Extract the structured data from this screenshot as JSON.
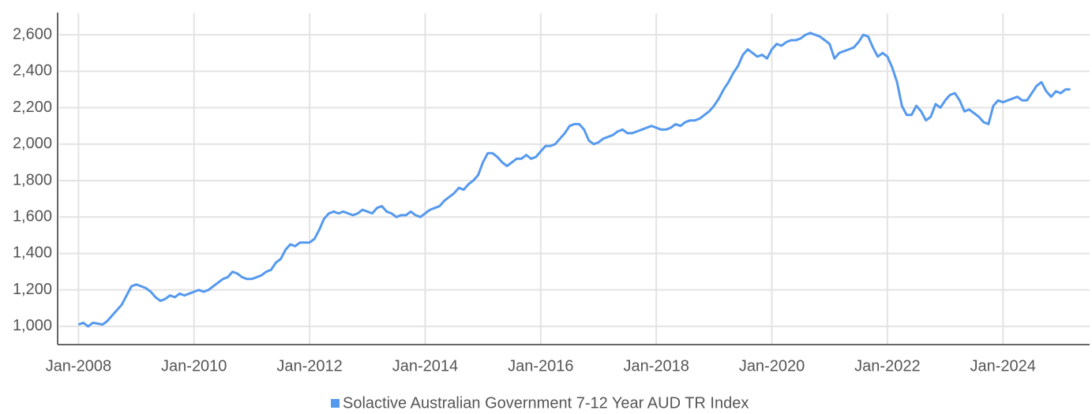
{
  "chart_data": {
    "type": "line",
    "x": [
      "2008-01",
      "2008-02",
      "2008-03",
      "2008-04",
      "2008-05",
      "2008-06",
      "2008-07",
      "2008-08",
      "2008-09",
      "2008-10",
      "2008-11",
      "2008-12",
      "2009-01",
      "2009-02",
      "2009-03",
      "2009-04",
      "2009-05",
      "2009-06",
      "2009-07",
      "2009-08",
      "2009-09",
      "2009-10",
      "2009-11",
      "2009-12",
      "2010-01",
      "2010-02",
      "2010-03",
      "2010-04",
      "2010-05",
      "2010-06",
      "2010-07",
      "2010-08",
      "2010-09",
      "2010-10",
      "2010-11",
      "2010-12",
      "2011-01",
      "2011-02",
      "2011-03",
      "2011-04",
      "2011-05",
      "2011-06",
      "2011-07",
      "2011-08",
      "2011-09",
      "2011-10",
      "2011-11",
      "2011-12",
      "2012-01",
      "2012-02",
      "2012-03",
      "2012-04",
      "2012-05",
      "2012-06",
      "2012-07",
      "2012-08",
      "2012-09",
      "2012-10",
      "2012-11",
      "2012-12",
      "2013-01",
      "2013-02",
      "2013-03",
      "2013-04",
      "2013-05",
      "2013-06",
      "2013-07",
      "2013-08",
      "2013-09",
      "2013-10",
      "2013-11",
      "2013-12",
      "2014-01",
      "2014-02",
      "2014-03",
      "2014-04",
      "2014-05",
      "2014-06",
      "2014-07",
      "2014-08",
      "2014-09",
      "2014-10",
      "2014-11",
      "2014-12",
      "2015-01",
      "2015-02",
      "2015-03",
      "2015-04",
      "2015-05",
      "2015-06",
      "2015-07",
      "2015-08",
      "2015-09",
      "2015-10",
      "2015-11",
      "2015-12",
      "2016-01",
      "2016-02",
      "2016-03",
      "2016-04",
      "2016-05",
      "2016-06",
      "2016-07",
      "2016-08",
      "2016-09",
      "2016-10",
      "2016-11",
      "2016-12",
      "2017-01",
      "2017-02",
      "2017-03",
      "2017-04",
      "2017-05",
      "2017-06",
      "2017-07",
      "2017-08",
      "2017-09",
      "2017-10",
      "2017-11",
      "2017-12",
      "2018-01",
      "2018-02",
      "2018-03",
      "2018-04",
      "2018-05",
      "2018-06",
      "2018-07",
      "2018-08",
      "2018-09",
      "2018-10",
      "2018-11",
      "2018-12",
      "2019-01",
      "2019-02",
      "2019-03",
      "2019-04",
      "2019-05",
      "2019-06",
      "2019-07",
      "2019-08",
      "2019-09",
      "2019-10",
      "2019-11",
      "2019-12",
      "2020-01",
      "2020-02",
      "2020-03",
      "2020-04",
      "2020-05",
      "2020-06",
      "2020-07",
      "2020-08",
      "2020-09",
      "2020-10",
      "2020-11",
      "2020-12",
      "2021-01",
      "2021-02",
      "2021-03",
      "2021-04",
      "2021-05",
      "2021-06",
      "2021-07",
      "2021-08",
      "2021-09",
      "2021-10",
      "2021-11",
      "2021-12",
      "2022-01",
      "2022-02",
      "2022-03",
      "2022-04",
      "2022-05",
      "2022-06",
      "2022-07",
      "2022-08",
      "2022-09",
      "2022-10",
      "2022-11",
      "2022-12",
      "2023-01",
      "2023-02",
      "2023-03",
      "2023-04",
      "2023-05",
      "2023-06",
      "2023-07",
      "2023-08",
      "2023-09",
      "2023-10",
      "2023-11",
      "2023-12",
      "2024-01",
      "2024-02",
      "2024-03",
      "2024-04",
      "2024-05",
      "2024-06",
      "2024-07",
      "2024-08",
      "2024-09",
      "2024-10",
      "2024-11",
      "2024-12",
      "2025-01",
      "2025-02",
      "2025-03"
    ],
    "series": [
      {
        "name": "Solactive Australian Government 7-12 Year AUD TR Index",
        "color": "#5599ee",
        "values": [
          1010,
          1020,
          1000,
          1020,
          1015,
          1010,
          1030,
          1060,
          1090,
          1120,
          1170,
          1220,
          1230,
          1220,
          1210,
          1190,
          1160,
          1140,
          1150,
          1170,
          1160,
          1180,
          1170,
          1180,
          1190,
          1200,
          1190,
          1200,
          1220,
          1240,
          1260,
          1270,
          1300,
          1290,
          1270,
          1260,
          1260,
          1270,
          1280,
          1300,
          1310,
          1350,
          1370,
          1420,
          1450,
          1440,
          1460,
          1460,
          1460,
          1480,
          1530,
          1590,
          1620,
          1630,
          1620,
          1630,
          1620,
          1610,
          1620,
          1640,
          1630,
          1620,
          1650,
          1660,
          1630,
          1620,
          1600,
          1610,
          1610,
          1630,
          1610,
          1600,
          1620,
          1640,
          1650,
          1660,
          1690,
          1710,
          1730,
          1760,
          1750,
          1780,
          1800,
          1830,
          1900,
          1950,
          1950,
          1930,
          1900,
          1880,
          1900,
          1920,
          1920,
          1940,
          1920,
          1930,
          1960,
          1990,
          1990,
          2000,
          2030,
          2060,
          2100,
          2110,
          2110,
          2080,
          2020,
          2000,
          2010,
          2030,
          2040,
          2050,
          2070,
          2080,
          2060,
          2060,
          2070,
          2080,
          2090,
          2100,
          2090,
          2080,
          2080,
          2090,
          2110,
          2100,
          2120,
          2130,
          2130,
          2140,
          2160,
          2180,
          2210,
          2250,
          2300,
          2340,
          2390,
          2430,
          2490,
          2520,
          2500,
          2480,
          2490,
          2470,
          2520,
          2550,
          2540,
          2560,
          2570,
          2570,
          2580,
          2600,
          2610,
          2600,
          2590,
          2570,
          2550,
          2470,
          2500,
          2510,
          2520,
          2530,
          2560,
          2600,
          2590,
          2530,
          2480,
          2500,
          2480,
          2420,
          2340,
          2210,
          2160,
          2160,
          2210,
          2180,
          2130,
          2150,
          2220,
          2200,
          2240,
          2270,
          2280,
          2240,
          2180,
          2190,
          2170,
          2150,
          2120,
          2110,
          2210,
          2240,
          2230,
          2240,
          2250,
          2260,
          2240,
          2240,
          2280,
          2320,
          2340,
          2290,
          2260,
          2290,
          2280,
          2300,
          2300
        ]
      }
    ],
    "xlim": [
      "2007-09",
      "2025-07"
    ],
    "xticks": [
      {
        "value": "2008-01",
        "label": "Jan-2008"
      },
      {
        "value": "2010-01",
        "label": "Jan-2010"
      },
      {
        "value": "2012-01",
        "label": "Jan-2012"
      },
      {
        "value": "2014-01",
        "label": "Jan-2014"
      },
      {
        "value": "2016-01",
        "label": "Jan-2016"
      },
      {
        "value": "2018-01",
        "label": "Jan-2018"
      },
      {
        "value": "2020-01",
        "label": "Jan-2020"
      },
      {
        "value": "2022-01",
        "label": "Jan-2022"
      },
      {
        "value": "2024-01",
        "label": "Jan-2024"
      }
    ],
    "ylim": [
      900,
      2700
    ],
    "yticks": [
      {
        "value": 1000,
        "label": "1,000"
      },
      {
        "value": 1200,
        "label": "1,200"
      },
      {
        "value": 1400,
        "label": "1,400"
      },
      {
        "value": 1600,
        "label": "1,600"
      },
      {
        "value": 1800,
        "label": "1,800"
      },
      {
        "value": 2000,
        "label": "2,000"
      },
      {
        "value": 2200,
        "label": "2,200"
      },
      {
        "value": 2400,
        "label": "2,400"
      },
      {
        "value": 2600,
        "label": "2,600"
      }
    ],
    "grid": true,
    "legend": "bottom"
  }
}
